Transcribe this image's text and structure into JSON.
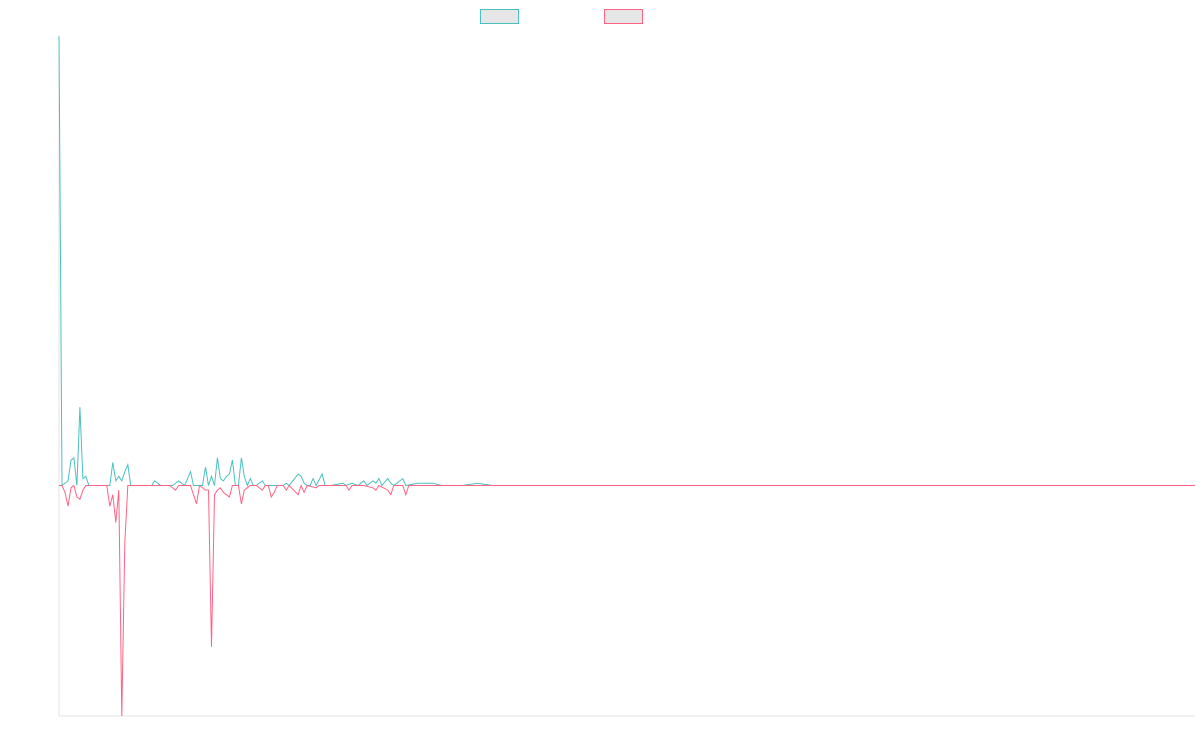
{
  "chart_data": {
    "type": "line",
    "title": "",
    "xlabel": "",
    "ylabel": "",
    "xlim": [
      0,
      380
    ],
    "ylim": [
      -100,
      195
    ],
    "grid": false,
    "legend_position": "top",
    "series": [
      {
        "name": "",
        "color": "#4bc0c0",
        "fill": "#e6e6e6",
        "points": [
          [
            0,
            195
          ],
          [
            1,
            0
          ],
          [
            3,
            2
          ],
          [
            4,
            11
          ],
          [
            5,
            12
          ],
          [
            6,
            0
          ],
          [
            7,
            34
          ],
          [
            8,
            3
          ],
          [
            9,
            4
          ],
          [
            10,
            0
          ],
          [
            12,
            0
          ],
          [
            15,
            0
          ],
          [
            17,
            0
          ],
          [
            18,
            10
          ],
          [
            19,
            2
          ],
          [
            20,
            4
          ],
          [
            21,
            2
          ],
          [
            22,
            6
          ],
          [
            23,
            9
          ],
          [
            24,
            0
          ],
          [
            30,
            0
          ],
          [
            31,
            0
          ],
          [
            32,
            2
          ],
          [
            34,
            0
          ],
          [
            38,
            0
          ],
          [
            40,
            2
          ],
          [
            42,
            0
          ],
          [
            44,
            6
          ],
          [
            45,
            0
          ],
          [
            48,
            0
          ],
          [
            49,
            8
          ],
          [
            50,
            0
          ],
          [
            51,
            4
          ],
          [
            52,
            0
          ],
          [
            53,
            12
          ],
          [
            54,
            3
          ],
          [
            55,
            2
          ],
          [
            56,
            4
          ],
          [
            57,
            5
          ],
          [
            58,
            11
          ],
          [
            59,
            0
          ],
          [
            60,
            0
          ],
          [
            61,
            12
          ],
          [
            62,
            4
          ],
          [
            63,
            0
          ],
          [
            64,
            3
          ],
          [
            65,
            0
          ],
          [
            66,
            0
          ],
          [
            68,
            2
          ],
          [
            69,
            0
          ],
          [
            70,
            0
          ],
          [
            71,
            0
          ],
          [
            75,
            0
          ],
          [
            76,
            1
          ],
          [
            77,
            0
          ],
          [
            80,
            5
          ],
          [
            81,
            4
          ],
          [
            82,
            1
          ],
          [
            83,
            0
          ],
          [
            84,
            0
          ],
          [
            85,
            3
          ],
          [
            86,
            0
          ],
          [
            88,
            5
          ],
          [
            89,
            0
          ],
          [
            90,
            0
          ],
          [
            91,
            0
          ],
          [
            95,
            1
          ],
          [
            96,
            0
          ],
          [
            98,
            1
          ],
          [
            100,
            0
          ],
          [
            102,
            2
          ],
          [
            103,
            0
          ],
          [
            105,
            2
          ],
          [
            106,
            1
          ],
          [
            107,
            3
          ],
          [
            108,
            0
          ],
          [
            110,
            3
          ],
          [
            111,
            1
          ],
          [
            112,
            0
          ],
          [
            115,
            3
          ],
          [
            116,
            0
          ],
          [
            120,
            1
          ],
          [
            125,
            1
          ],
          [
            128,
            0
          ],
          [
            132,
            0
          ],
          [
            135,
            0
          ],
          [
            140,
            1
          ],
          [
            145,
            0
          ],
          [
            150,
            0
          ],
          [
            155,
            0
          ],
          [
            160,
            0
          ],
          [
            165,
            0
          ],
          [
            170,
            0
          ],
          [
            175,
            0
          ],
          [
            180,
            0
          ],
          [
            185,
            0
          ],
          [
            190,
            0
          ],
          [
            195,
            0
          ],
          [
            200,
            0
          ],
          [
            205,
            0
          ],
          [
            210,
            0
          ],
          [
            215,
            0
          ],
          [
            220,
            0
          ],
          [
            225,
            0
          ],
          [
            230,
            0
          ],
          [
            235,
            0
          ],
          [
            240,
            0
          ],
          [
            245,
            0
          ],
          [
            250,
            0
          ],
          [
            255,
            0
          ],
          [
            260,
            0
          ],
          [
            265,
            0
          ],
          [
            270,
            0
          ],
          [
            280,
            0
          ],
          [
            290,
            0
          ],
          [
            300,
            0
          ],
          [
            320,
            0
          ],
          [
            350,
            0
          ],
          [
            380,
            0
          ]
        ]
      },
      {
        "name": "",
        "color": "#ff6384",
        "fill": "#e6e6e6",
        "points": [
          [
            0,
            0
          ],
          [
            1,
            0
          ],
          [
            2,
            -3
          ],
          [
            3,
            -9
          ],
          [
            4,
            -1
          ],
          [
            5,
            0
          ],
          [
            6,
            -5
          ],
          [
            7,
            -6
          ],
          [
            8,
            -2
          ],
          [
            9,
            0
          ],
          [
            10,
            0
          ],
          [
            12,
            0
          ],
          [
            15,
            0
          ],
          [
            16,
            0
          ],
          [
            17,
            -9
          ],
          [
            18,
            -4
          ],
          [
            19,
            -16
          ],
          [
            20,
            -2
          ],
          [
            21,
            -100
          ],
          [
            22,
            -25
          ],
          [
            23,
            0
          ],
          [
            24,
            0
          ],
          [
            30,
            0
          ],
          [
            33,
            0
          ],
          [
            35,
            0
          ],
          [
            37,
            0
          ],
          [
            39,
            -2
          ],
          [
            40,
            0
          ],
          [
            44,
            0
          ],
          [
            46,
            -8
          ],
          [
            47,
            0
          ],
          [
            49,
            -2
          ],
          [
            50,
            -2
          ],
          [
            51,
            -70
          ],
          [
            52,
            -4
          ],
          [
            53,
            -2
          ],
          [
            54,
            -1
          ],
          [
            55,
            -3
          ],
          [
            56,
            -4
          ],
          [
            57,
            -5
          ],
          [
            58,
            0
          ],
          [
            60,
            0
          ],
          [
            61,
            -8
          ],
          [
            62,
            -2
          ],
          [
            63,
            -1
          ],
          [
            64,
            0
          ],
          [
            66,
            0
          ],
          [
            68,
            -2
          ],
          [
            69,
            0
          ],
          [
            70,
            0
          ],
          [
            71,
            -5
          ],
          [
            72,
            -3
          ],
          [
            73,
            0
          ],
          [
            75,
            0
          ],
          [
            76,
            -2
          ],
          [
            77,
            0
          ],
          [
            80,
            -4
          ],
          [
            81,
            0
          ],
          [
            82,
            -3
          ],
          [
            83,
            0
          ],
          [
            86,
            -1
          ],
          [
            87,
            0
          ],
          [
            90,
            0
          ],
          [
            92,
            0
          ],
          [
            94,
            0
          ],
          [
            96,
            0
          ],
          [
            97,
            -2
          ],
          [
            98,
            0
          ],
          [
            100,
            0
          ],
          [
            102,
            0
          ],
          [
            105,
            -1
          ],
          [
            106,
            -2
          ],
          [
            107,
            0
          ],
          [
            110,
            -2
          ],
          [
            111,
            -4
          ],
          [
            112,
            0
          ],
          [
            115,
            0
          ],
          [
            116,
            -4
          ],
          [
            117,
            0
          ],
          [
            120,
            0
          ],
          [
            125,
            0
          ],
          [
            130,
            0
          ],
          [
            135,
            0
          ],
          [
            140,
            0
          ],
          [
            145,
            0
          ],
          [
            150,
            0
          ],
          [
            155,
            0
          ],
          [
            160,
            0
          ],
          [
            165,
            0
          ],
          [
            170,
            0
          ],
          [
            175,
            0
          ],
          [
            180,
            0
          ],
          [
            185,
            0
          ],
          [
            190,
            0
          ],
          [
            195,
            0
          ],
          [
            200,
            0
          ],
          [
            205,
            0
          ],
          [
            210,
            0
          ],
          [
            215,
            0
          ],
          [
            220,
            0
          ],
          [
            225,
            0
          ],
          [
            230,
            0
          ],
          [
            235,
            0
          ],
          [
            240,
            0
          ],
          [
            245,
            0
          ],
          [
            250,
            0
          ],
          [
            255,
            0
          ],
          [
            260,
            0
          ],
          [
            265,
            0
          ],
          [
            270,
            0
          ],
          [
            280,
            0
          ],
          [
            290,
            0
          ],
          [
            300,
            0
          ],
          [
            320,
            0
          ],
          [
            350,
            0
          ],
          [
            380,
            0
          ]
        ]
      }
    ]
  }
}
